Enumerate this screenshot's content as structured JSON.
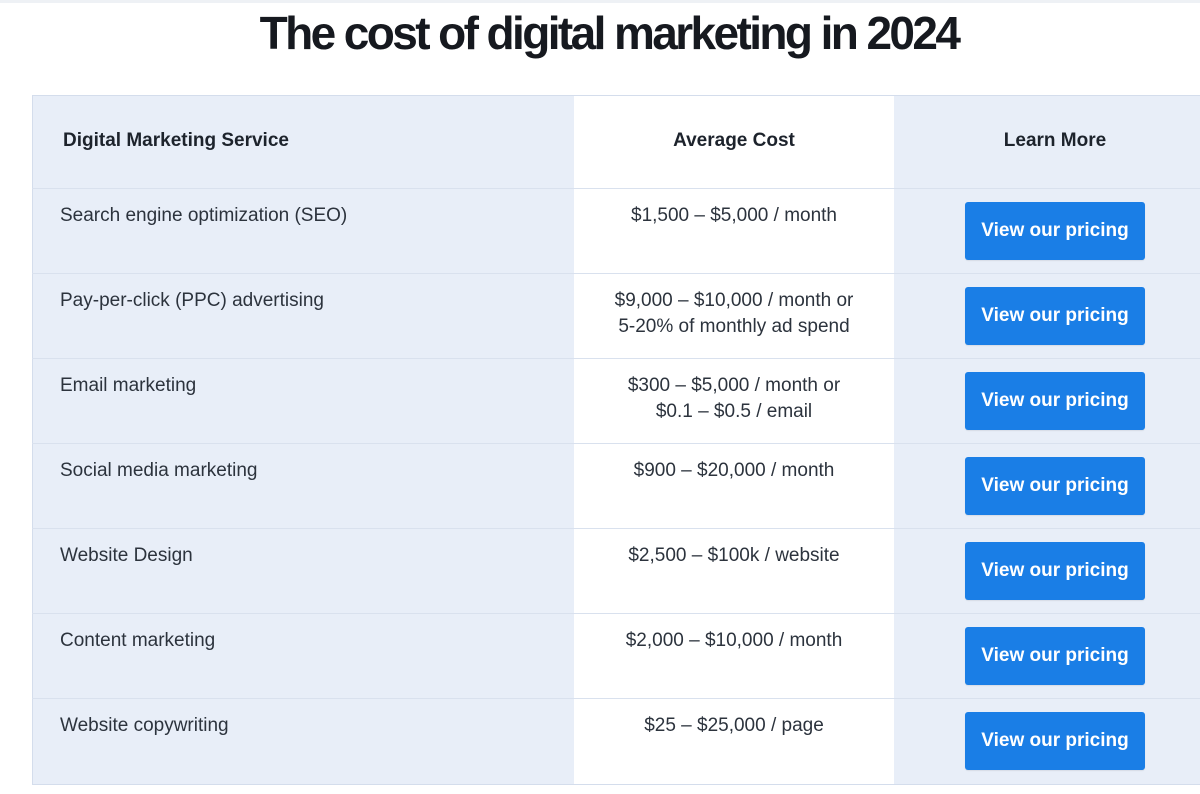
{
  "page": {
    "title": "The cost of digital marketing in 2024"
  },
  "table": {
    "headers": {
      "service": "Digital Marketing Service",
      "cost": "Average Cost",
      "learn_more": "Learn More"
    },
    "rows": [
      {
        "service": "Search engine optimization (SEO)",
        "cost": [
          "$1,500 – $5,000 / month"
        ],
        "button": "View our pricing"
      },
      {
        "service": "Pay-per-click (PPC) advertising",
        "cost": [
          "$9,000 – $10,000 / month or",
          "5-20% of monthly ad spend"
        ],
        "button": "View our pricing"
      },
      {
        "service": "Email marketing",
        "cost": [
          "$300 – $5,000 / month or",
          "$0.1 – $0.5 / email"
        ],
        "button": "View our pricing"
      },
      {
        "service": "Social media marketing",
        "cost": [
          "$900 – $20,000 / month"
        ],
        "button": "View our pricing"
      },
      {
        "service": "Website Design",
        "cost": [
          "$2,500 – $100k / website"
        ],
        "button": "View our pricing"
      },
      {
        "service": "Content marketing",
        "cost": [
          "$2,000 – $10,000 / month"
        ],
        "button": "View our pricing"
      },
      {
        "service": "Website copywriting",
        "cost": [
          "$25 – $25,000 / page"
        ],
        "button": "View our pricing"
      }
    ]
  },
  "colors": {
    "accent_button": "#1a7ee6",
    "shaded_column": "#e8eef8",
    "title_text": "#16191f"
  }
}
